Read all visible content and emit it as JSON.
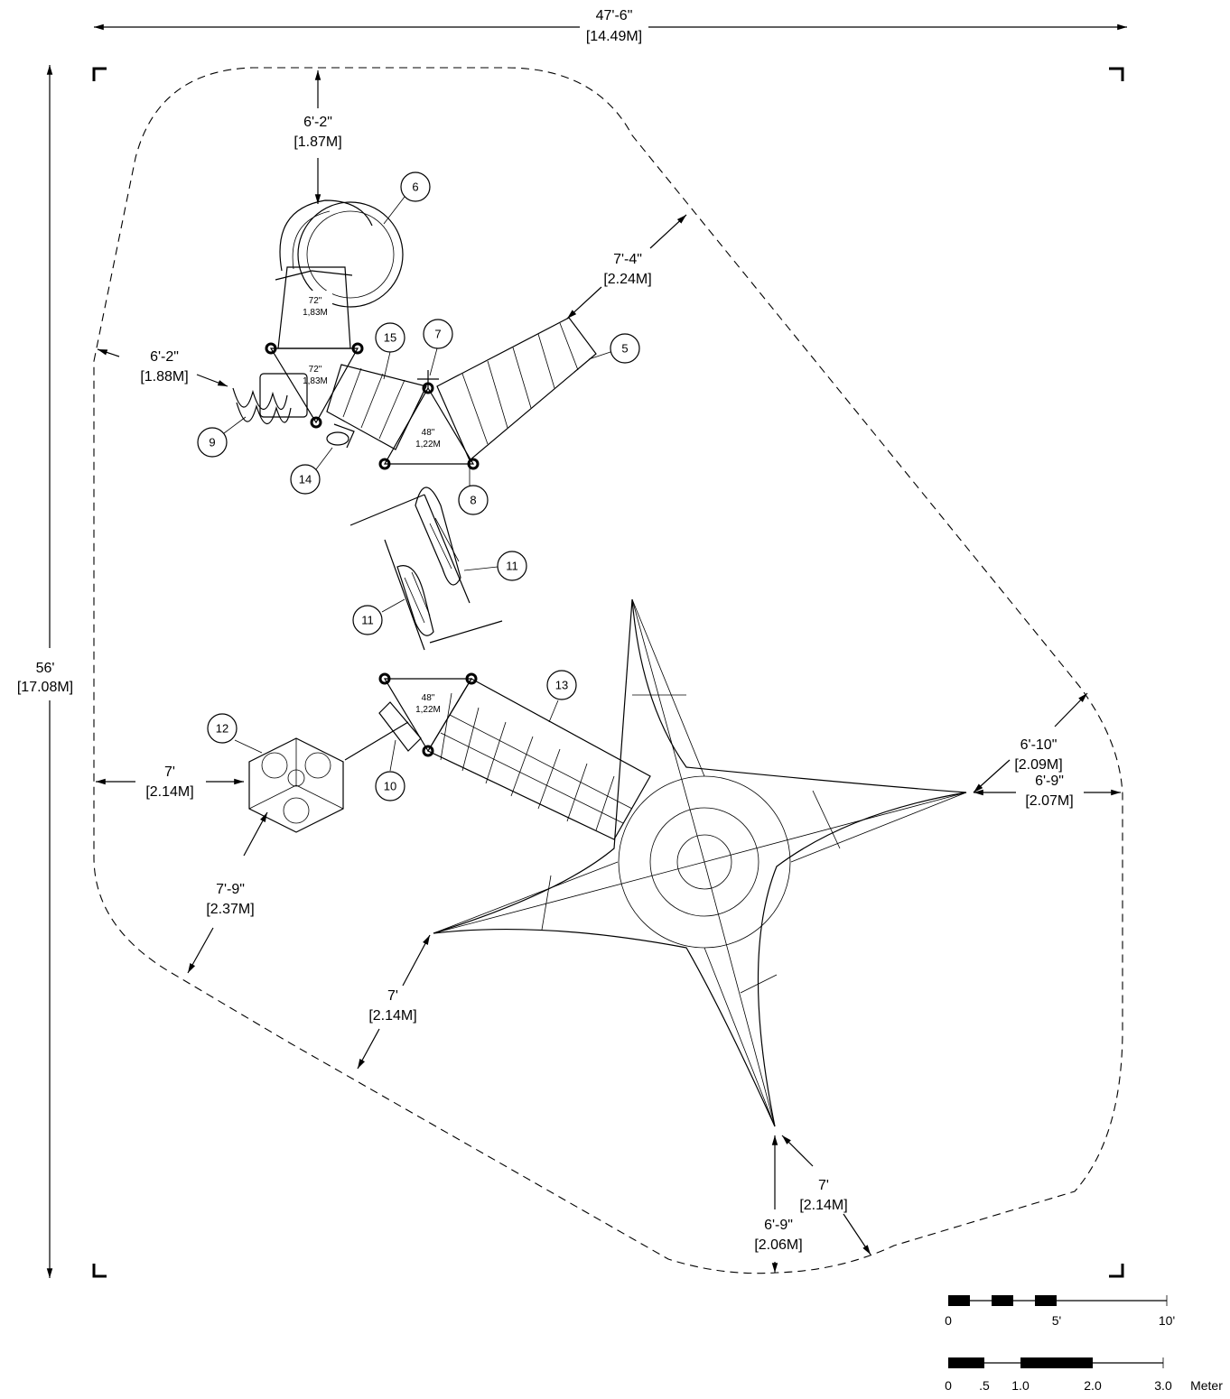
{
  "overall": {
    "width_ft": "47'-6\"",
    "width_m": "[14.49M]",
    "height_ft": "56'",
    "height_m": "[17.08M]"
  },
  "dimensions": [
    {
      "ft": "6'-2\"",
      "m": "[1.87M]"
    },
    {
      "ft": "7'-4\"",
      "m": "[2.24M]"
    },
    {
      "ft": "6'-2\"",
      "m": "[1.88M]"
    },
    {
      "ft": "7'",
      "m": "[2.14M]"
    },
    {
      "ft": "7'-9\"",
      "m": "[2.37M]"
    },
    {
      "ft": "7'",
      "m": "[2.14M]"
    },
    {
      "ft": "6'-10\"",
      "m": "[2.09M]"
    },
    {
      "ft": "6'-9\"",
      "m": "[2.07M]"
    },
    {
      "ft": "7'",
      "m": "[2.14M]"
    },
    {
      "ft": "6'-9\"",
      "m": "[2.06M]"
    }
  ],
  "callouts": [
    "6",
    "15",
    "7",
    "5",
    "9",
    "14",
    "8",
    "11",
    "11",
    "13",
    "12",
    "10"
  ],
  "decks": [
    {
      "in": "72\"",
      "m": "1,83M"
    },
    {
      "in": "72\"",
      "m": "1,83M"
    },
    {
      "in": "48\"",
      "m": "1,22M"
    },
    {
      "in": "48\"",
      "m": "1,22M"
    }
  ],
  "scale": {
    "feet_labels": [
      "0",
      "5'",
      "10'"
    ],
    "meter_labels": [
      "0",
      ".5",
      "1.0",
      "2.0",
      "3.0"
    ],
    "meter_unit": "Meter"
  }
}
